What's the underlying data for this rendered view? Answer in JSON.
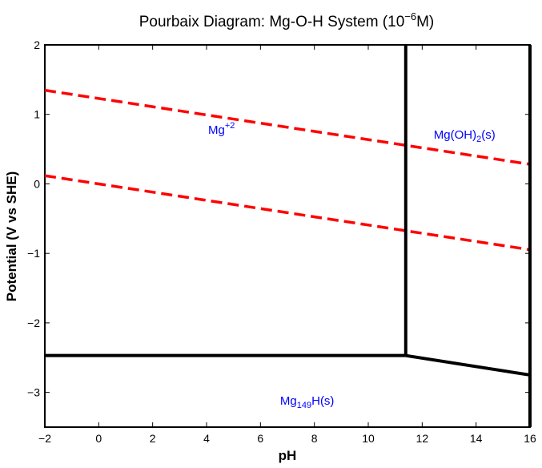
{
  "chart_data": {
    "type": "line",
    "title": "Pourbaix Diagram: Mg-O-H System (10",
    "title_sup": "−6",
    "title_end": "M)",
    "xlabel": "pH",
    "ylabel": "Potential (V vs SHE)",
    "xlim": [
      -2,
      16
    ],
    "ylim": [
      -3.5,
      2
    ],
    "xticks": [
      -2,
      0,
      2,
      4,
      6,
      8,
      10,
      12,
      14,
      16
    ],
    "xtick_labels": [
      "−2",
      "0",
      "2",
      "4",
      "6",
      "8",
      "10",
      "12",
      "14",
      "16"
    ],
    "yticks": [
      2,
      1,
      0,
      -1,
      -2,
      -3
    ],
    "ytick_labels": [
      "2",
      "1",
      "0",
      "−1",
      "−2",
      "−3"
    ],
    "grid": false,
    "boundaries": [
      {
        "points": [
          [
            11.39,
            2
          ],
          [
            11.39,
            -2.47
          ]
        ],
        "color": "#000000",
        "style": "solid"
      },
      {
        "points": [
          [
            -2,
            -2.47
          ],
          [
            11.39,
            -2.47
          ]
        ],
        "color": "#000000",
        "style": "solid"
      },
      {
        "points": [
          [
            11.39,
            -2.47
          ],
          [
            16,
            -2.75
          ]
        ],
        "color": "#000000",
        "style": "solid"
      },
      {
        "points": [
          [
            16,
            2
          ],
          [
            16,
            -3.5
          ]
        ],
        "color": "#000000",
        "style": "solid"
      }
    ],
    "water_lines": [
      {
        "points": [
          [
            -2,
            1.347
          ],
          [
            16,
            0.282
          ]
        ],
        "color": "#ff0000",
        "style": "dashed"
      },
      {
        "points": [
          [
            -2,
            0.118
          ],
          [
            16,
            -0.947
          ]
        ],
        "color": "#ff0000",
        "style": "dashed"
      }
    ],
    "regions": [
      {
        "label": "Mg",
        "sup": "+2",
        "sub": "",
        "suffix": "",
        "at": [
          4.06,
          0.72
        ],
        "color": "#0000ff"
      },
      {
        "label": "Mg(OH)",
        "sup": "",
        "sub": "2",
        "suffix": "(s)",
        "at": [
          12.43,
          0.65
        ],
        "color": "#0000ff"
      },
      {
        "label": "Mg",
        "sup": "",
        "sub": "149",
        "suffix": "H(s)",
        "at": [
          6.73,
          -3.18
        ],
        "color": "#0000ff"
      }
    ]
  }
}
